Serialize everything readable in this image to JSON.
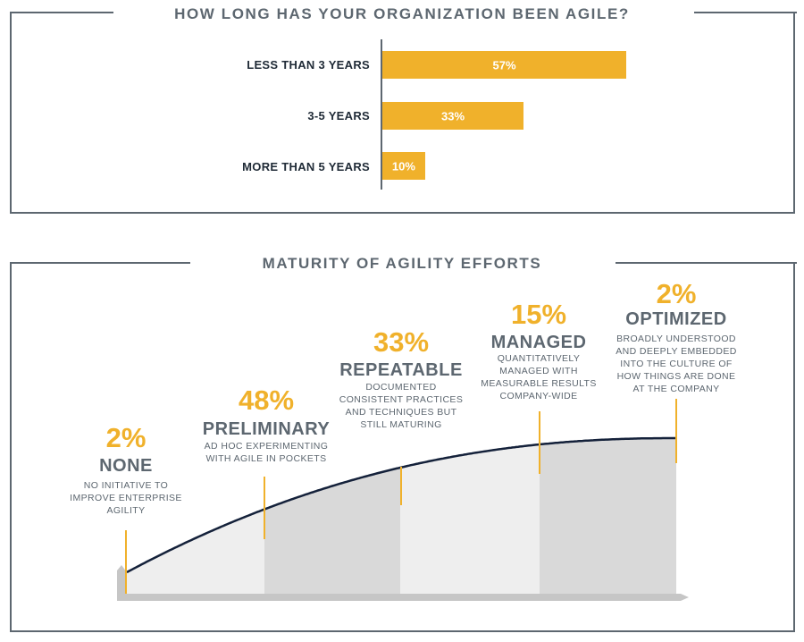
{
  "chart_data": [
    {
      "type": "bar",
      "title": "HOW LONG HAS YOUR ORGANIZATION BEEN AGILE?",
      "categories": [
        "LESS THAN 3 YEARS",
        "3-5 YEARS",
        "MORE THAN 5 YEARS"
      ],
      "values": [
        57,
        33,
        10
      ],
      "value_labels": [
        "57%",
        "33%",
        "10%"
      ],
      "orientation": "horizontal",
      "xlim": [
        0,
        100
      ],
      "color": "#f0b12b"
    },
    {
      "type": "area",
      "title": "MATURITY OF AGILITY EFFORTS",
      "stages": [
        {
          "percent_label": "2%",
          "value": 2,
          "name": "NONE",
          "description": [
            "NO INITIATIVE TO",
            "IMPROVE ENTERPRISE",
            "AGILITY"
          ]
        },
        {
          "percent_label": "48%",
          "value": 48,
          "name": "PRELIMINARY",
          "description": [
            "AD HOC EXPERIMENTING",
            "WITH AGILE IN POCKETS"
          ]
        },
        {
          "percent_label": "33%",
          "value": 33,
          "name": "REPEATABLE",
          "description": [
            "DOCUMENTED",
            "CONSISTENT PRACTICES",
            "AND TECHNIQUES BUT",
            "STILL MATURING"
          ]
        },
        {
          "percent_label": "15%",
          "value": 15,
          "name": "MANAGED",
          "description": [
            "QUANTITATIVELY",
            "MANAGED WITH",
            "MEASURABLE RESULTS",
            "COMPANY-WIDE"
          ]
        },
        {
          "percent_label": "2%",
          "value": 2,
          "name": "OPTIMIZED",
          "description": [
            "BROADLY UNDERSTOOD",
            "AND DEEPLY EMBEDDED",
            "INTO THE CULTURE OF",
            "HOW THINGS ARE DONE",
            "AT THE COMPANY"
          ]
        }
      ],
      "colors": {
        "accent": "#f0b12b",
        "curve": "#14213a",
        "text": "#5d6770",
        "band_light": "#eeeeee",
        "band_dark": "#d9d9d9",
        "base": "#c6c6c6"
      }
    }
  ]
}
